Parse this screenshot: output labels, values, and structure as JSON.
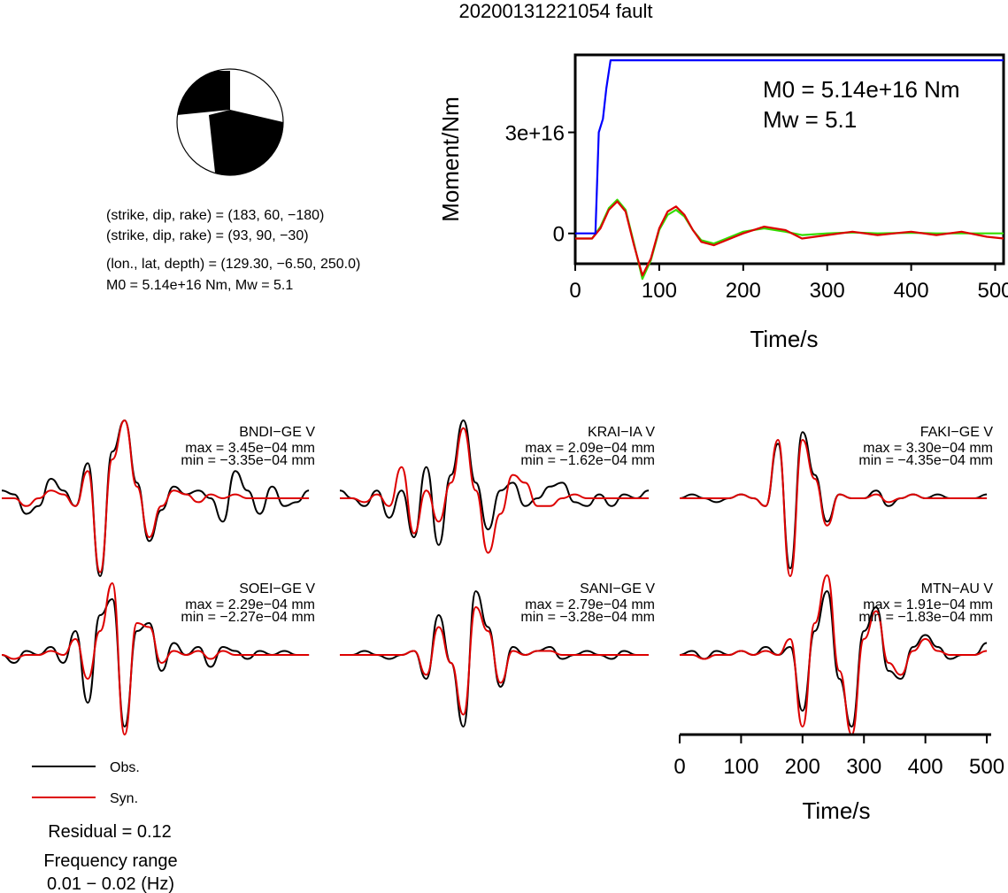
{
  "title": "20200131221054 fault",
  "beachball": {
    "plane1": "(strike, dip, rake) = (183, 60, −180)",
    "plane2": "(strike, dip, rake) = (93, 90, −30)",
    "location": "(lon., lat, depth) = (129.30, −6.50, 250.0)",
    "moment_line": "M0 = 5.14e+16 Nm, Mw = 5.1",
    "colors": {
      "compression": "#000000",
      "dilatation": "#ffffff"
    }
  },
  "moment_plot": {
    "m0_label": "M0 = 5.14e+16 Nm",
    "mw_label": "Mw = 5.1"
  },
  "chart_data": [
    {
      "type": "line",
      "ylabel": "Moment/Nm",
      "xlabel": "Time/s",
      "xlim": [
        0,
        510
      ],
      "x_ticks": [
        "0",
        "100",
        "200",
        "300",
        "400",
        "500"
      ],
      "ylim": [
        -9000000000000000.0,
        5.3e+16
      ],
      "y_ticks": [
        {
          "value": 0,
          "label": "0"
        },
        {
          "value": 3e+16,
          "label": "3e+16"
        }
      ],
      "series": [
        {
          "role": "cumulative-moment",
          "color": "#0000ff",
          "x": [
            0,
            24,
            28,
            33,
            37,
            42,
            510
          ],
          "y": [
            0,
            0,
            3e+16,
            3.4e+16,
            4.3e+16,
            5.14e+16,
            5.14e+16
          ]
        },
        {
          "role": "moment-rate-a",
          "color": "#33dd00",
          "x": [
            0,
            20,
            30,
            40,
            50,
            60,
            70,
            80,
            90,
            100,
            110,
            120,
            130,
            140,
            150,
            165,
            180,
            200,
            225,
            250,
            270,
            300,
            330,
            360,
            400,
            430,
            460,
            490,
            510
          ],
          "y": [
            -1500000000000000.0,
            -1500000000000000.0,
            2000000000000000.0,
            7500000000000000.0,
            1e+16,
            7000000000000000.0,
            -3000000000000000.0,
            -1.35e+16,
            -8000000000000000.0,
            1000000000000000.0,
            5500000000000000.0,
            7000000000000000.0,
            5000000000000000.0,
            1000000000000000.0,
            -2000000000000000.0,
            -3000000000000000.0,
            -1500000000000000.0,
            500000000000000.0,
            1500000000000000.0,
            500000000000000.0,
            -500000000000000.0,
            0.0,
            300000000000000.0,
            0.0,
            200000000000000.0,
            0.0,
            0.0,
            0.0,
            0.0
          ]
        },
        {
          "role": "moment-rate-b",
          "color": "#dd0000",
          "x": [
            0,
            20,
            30,
            40,
            50,
            60,
            70,
            80,
            90,
            100,
            110,
            120,
            130,
            140,
            150,
            165,
            180,
            200,
            225,
            250,
            270,
            300,
            330,
            360,
            400,
            430,
            460,
            490,
            510
          ],
          "y": [
            -1500000000000000.0,
            -1500000000000000.0,
            1500000000000000.0,
            7000000000000000.0,
            9500000000000000.0,
            6500000000000000.0,
            -3500000000000000.0,
            -1.25e+16,
            -7500000000000000.0,
            1500000000000000.0,
            6500000000000000.0,
            8000000000000000.0,
            5500000000000000.0,
            1000000000000000.0,
            -2500000000000000.0,
            -3500000000000000.0,
            -2000000000000000.0,
            0.0,
            2000000000000000.0,
            1000000000000000.0,
            -1500000000000000.0,
            -500000000000000.0,
            500000000000000.0,
            -500000000000000.0,
            500000000000000.0,
            -500000000000000.0,
            500000000000000.0,
            -1000000000000000.0,
            -1500000000000000.0
          ]
        }
      ]
    },
    {
      "type": "line",
      "xlabel": "Time/s",
      "xlim": [
        0,
        510
      ],
      "x_ticks": [
        "0",
        "100",
        "200",
        "300",
        "400",
        "500"
      ],
      "legend": {
        "placement": "bottom-left",
        "items": [
          {
            "name": "Obs.",
            "color": "#000000"
          },
          {
            "name": "Syn.",
            "color": "#dd0000"
          }
        ]
      },
      "residual": "Residual = 0.12",
      "freq_label": "Frequency range",
      "freq_value": "0.01 − 0.02 (Hz)",
      "panels": [
        {
          "station": "BNDI−GE V",
          "max": "max = 3.45e−04 mm",
          "min": "min = −3.35e−04 mm",
          "obs": {
            "t": [
              0,
              20,
              40,
              60,
              80,
              100,
              120,
              140,
              160,
              180,
              200,
              220,
              240,
              260,
              280,
              300,
              320,
              340,
              360,
              380,
              400,
              420,
              440,
              460,
              480,
              500
            ],
            "v": [
              0.1,
              0.05,
              -0.2,
              -0.1,
              0.25,
              0.1,
              -0.1,
              0.45,
              -1.0,
              0.6,
              1.0,
              0.2,
              -0.55,
              -0.15,
              0.15,
              0.05,
              0.1,
              0.0,
              -0.3,
              0.35,
              0.1,
              -0.2,
              0.15,
              -0.1,
              -0.05,
              0.1
            ]
          },
          "syn": {
            "t": [
              0,
              20,
              40,
              60,
              80,
              100,
              120,
              140,
              160,
              180,
              200,
              220,
              240,
              260,
              280,
              300,
              320,
              340,
              360,
              380,
              400,
              420,
              440,
              460,
              480,
              500
            ],
            "v": [
              0.0,
              0.0,
              -0.1,
              0.0,
              0.1,
              0.05,
              -0.1,
              0.35,
              -0.95,
              0.5,
              1.0,
              0.15,
              -0.5,
              -0.1,
              0.1,
              0.05,
              -0.05,
              0.05,
              0.0,
              0.05,
              0.0,
              0.0,
              0.0,
              0.0,
              0.0,
              0.0
            ]
          }
        },
        {
          "station": "KRAI−IA V",
          "max": "max = 2.09e−04 mm",
          "min": "min = −1.62e−04 mm",
          "obs": {
            "t": [
              0,
              20,
              40,
              60,
              80,
              100,
              120,
              140,
              160,
              180,
              200,
              220,
              240,
              260,
              280,
              300,
              320,
              340,
              360,
              380,
              400,
              420,
              440,
              460,
              480,
              500
            ],
            "v": [
              0.1,
              0.0,
              -0.1,
              0.1,
              -0.25,
              0.1,
              -0.5,
              0.4,
              -0.6,
              0.3,
              1.0,
              0.2,
              -0.4,
              0.1,
              0.2,
              -0.1,
              0.0,
              0.15,
              0.2,
              -0.05,
              -0.1,
              0.05,
              -0.1,
              0.05,
              0.0,
              0.1
            ]
          },
          "syn": {
            "t": [
              0,
              20,
              40,
              60,
              80,
              100,
              120,
              140,
              160,
              180,
              200,
              220,
              240,
              260,
              280,
              300,
              320,
              340,
              360,
              380,
              400,
              420,
              440,
              460,
              480,
              500
            ],
            "v": [
              0.0,
              0.0,
              -0.05,
              0.05,
              -0.1,
              0.4,
              -0.45,
              0.1,
              -0.3,
              0.2,
              0.9,
              0.1,
              -0.7,
              -0.2,
              0.3,
              0.2,
              -0.1,
              -0.1,
              0.0,
              0.05,
              0.0,
              0.0,
              0.0,
              0.0,
              0.0,
              0.0
            ]
          }
        },
        {
          "station": "FAKI−GE V",
          "max": "max = 3.30e−04 mm",
          "min": "min = −4.35e−04 mm",
          "obs": {
            "t": [
              0,
              20,
              40,
              60,
              80,
              100,
              120,
              140,
              160,
              180,
              200,
              220,
              240,
              260,
              280,
              300,
              320,
              340,
              360,
              380,
              400,
              420,
              440,
              460,
              480,
              500
            ],
            "v": [
              0.0,
              0.05,
              0.0,
              -0.05,
              0.0,
              0.05,
              0.0,
              -0.1,
              0.7,
              -0.9,
              0.85,
              0.3,
              -0.3,
              0.05,
              0.0,
              0.0,
              0.1,
              -0.1,
              0.0,
              0.05,
              0.0,
              0.05,
              0.0,
              0.0,
              0.0,
              0.05
            ]
          },
          "syn": {
            "t": [
              0,
              20,
              40,
              60,
              80,
              100,
              120,
              140,
              160,
              180,
              200,
              220,
              240,
              260,
              280,
              300,
              320,
              340,
              360,
              380,
              400,
              420,
              440,
              460,
              480,
              500
            ],
            "v": [
              0.0,
              0.0,
              0.0,
              0.0,
              0.0,
              0.05,
              0.0,
              -0.1,
              0.75,
              -1.0,
              0.75,
              0.25,
              -0.35,
              0.05,
              0.0,
              0.0,
              0.05,
              -0.05,
              0.0,
              0.05,
              0.0,
              0.0,
              0.0,
              0.0,
              0.0,
              0.0
            ]
          }
        },
        {
          "station": "SOEI−GE V",
          "max": "max = 2.29e−04 mm",
          "min": "min = −2.27e−04 mm",
          "obs": {
            "t": [
              0,
              20,
              40,
              60,
              80,
              100,
              120,
              140,
              160,
              180,
              200,
              220,
              240,
              260,
              280,
              300,
              320,
              340,
              360,
              380,
              400,
              420,
              440,
              460,
              480,
              500
            ],
            "v": [
              0.0,
              -0.1,
              0.05,
              0.0,
              0.1,
              -0.1,
              0.3,
              -0.6,
              0.5,
              0.7,
              -0.9,
              0.3,
              0.4,
              -0.2,
              0.15,
              0.0,
              0.1,
              -0.15,
              0.1,
              0.05,
              -0.05,
              0.05,
              0.0,
              0.05,
              0.0,
              0.0
            ]
          },
          "syn": {
            "t": [
              0,
              20,
              40,
              60,
              80,
              100,
              120,
              140,
              160,
              180,
              200,
              220,
              240,
              260,
              280,
              300,
              320,
              340,
              360,
              380,
              400,
              420,
              440,
              460,
              480,
              500
            ],
            "v": [
              0.0,
              -0.05,
              0.0,
              0.0,
              0.05,
              0.0,
              0.2,
              -0.3,
              0.3,
              0.9,
              -1.0,
              0.4,
              0.35,
              -0.1,
              0.05,
              0.0,
              0.05,
              -0.05,
              0.05,
              0.0,
              0.0,
              0.0,
              0.0,
              0.0,
              0.0,
              0.0
            ]
          }
        },
        {
          "station": "SANI−GE V",
          "max": "max = 2.79e−04 mm",
          "min": "min = −3.28e−04 mm",
          "obs": {
            "t": [
              0,
              20,
              40,
              60,
              80,
              100,
              120,
              140,
              160,
              180,
              200,
              220,
              240,
              260,
              280,
              300,
              320,
              340,
              360,
              380,
              400,
              420,
              440,
              460,
              480,
              500
            ],
            "v": [
              0.0,
              0.0,
              0.05,
              0.0,
              -0.05,
              0.0,
              0.05,
              -0.3,
              0.5,
              -0.1,
              -0.9,
              0.8,
              0.35,
              -0.4,
              0.1,
              0.0,
              0.05,
              0.1,
              -0.05,
              0.0,
              0.05,
              0.0,
              -0.05,
              0.05,
              0.0,
              0.0
            ]
          },
          "syn": {
            "t": [
              0,
              20,
              40,
              60,
              80,
              100,
              120,
              140,
              160,
              180,
              200,
              220,
              240,
              260,
              280,
              300,
              320,
              340,
              360,
              380,
              400,
              420,
              440,
              460,
              480,
              500
            ],
            "v": [
              0.0,
              0.0,
              0.0,
              0.0,
              0.0,
              0.0,
              0.05,
              -0.25,
              0.35,
              -0.1,
              -0.75,
              0.6,
              0.3,
              -0.35,
              0.05,
              0.0,
              0.05,
              0.05,
              0.0,
              0.0,
              0.0,
              0.0,
              0.0,
              0.0,
              0.0,
              0.0
            ]
          }
        },
        {
          "station": "MTN−AU V",
          "max": "max = 1.91e−04 mm",
          "min": "min = −1.83e−04 mm",
          "obs": {
            "t": [
              0,
              20,
              40,
              60,
              80,
              100,
              120,
              140,
              160,
              180,
              200,
              220,
              240,
              260,
              280,
              300,
              320,
              340,
              360,
              380,
              400,
              420,
              440,
              460,
              480,
              500
            ],
            "v": [
              0.0,
              0.05,
              -0.05,
              0.05,
              0.0,
              0.05,
              0.0,
              0.1,
              0.0,
              0.1,
              -0.7,
              0.3,
              0.8,
              -0.3,
              -0.9,
              0.3,
              0.6,
              -0.2,
              -0.3,
              0.1,
              0.25,
              0.1,
              -0.05,
              0.0,
              0.0,
              0.15
            ]
          },
          "syn": {
            "t": [
              0,
              20,
              40,
              60,
              80,
              100,
              120,
              140,
              160,
              180,
              200,
              220,
              240,
              260,
              280,
              300,
              320,
              340,
              360,
              380,
              400,
              420,
              440,
              460,
              480,
              500
            ],
            "v": [
              0.0,
              0.0,
              -0.05,
              0.0,
              0.0,
              0.05,
              0.0,
              0.05,
              0.0,
              0.2,
              -0.9,
              0.4,
              1.0,
              -0.2,
              -1.0,
              0.2,
              0.55,
              -0.1,
              -0.25,
              0.05,
              0.2,
              0.05,
              0.0,
              0.0,
              0.0,
              0.05
            ]
          }
        }
      ]
    }
  ]
}
